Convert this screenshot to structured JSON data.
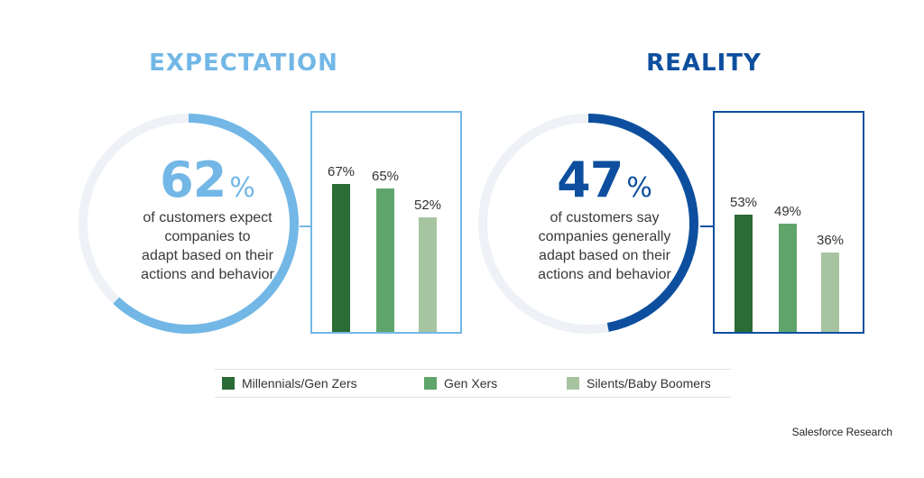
{
  "colors": {
    "expectation_accent": "#72b7e6",
    "reality_accent": "#0d4f9e",
    "ring_track": "#eef1f5",
    "millennials": "#2b6b35",
    "gen_x": "#5fa56b",
    "silents": "#a7c4a1"
  },
  "legend": [
    {
      "label": "Millennials/Gen Zers",
      "color": "#2b6b35"
    },
    {
      "label": "Gen Xers",
      "color": "#5fa56b"
    },
    {
      "label": "Silents/Baby Boomers",
      "color": "#a7c4a1"
    }
  ],
  "source": "Salesforce Research",
  "chart_data": [
    {
      "type": "pie",
      "title": "EXPECTATION",
      "big_value": "62",
      "unit": "%",
      "value": 62,
      "description": "of customers expect\ncompanies to\nadapt based on their\nactions and behavior"
    },
    {
      "type": "bar",
      "categories": [
        "Millennials/Gen Zers",
        "Gen Xers",
        "Silents/Baby Boomers"
      ],
      "values": [
        67,
        65,
        52
      ],
      "labels": [
        "67%",
        "65%",
        "52%"
      ],
      "ylim": [
        0,
        100
      ]
    },
    {
      "type": "pie",
      "title": "REALITY",
      "big_value": "47",
      "unit": "%",
      "value": 47,
      "description": "of customers say\ncompanies generally\nadapt based on their\nactions and behavior"
    },
    {
      "type": "bar",
      "categories": [
        "Millennials/Gen Zers",
        "Gen Xers",
        "Silents/Baby Boomers"
      ],
      "values": [
        53,
        49,
        36
      ],
      "labels": [
        "53%",
        "49%",
        "36%"
      ],
      "ylim": [
        0,
        100
      ]
    }
  ]
}
